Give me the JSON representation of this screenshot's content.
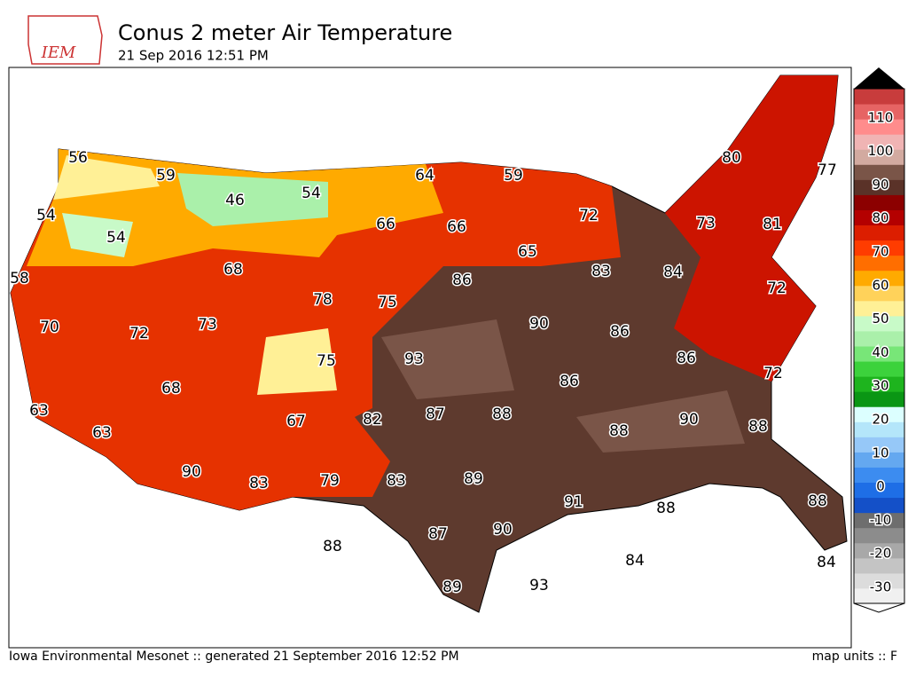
{
  "header": {
    "logo": "IEM",
    "title": "Conus 2 meter Air Temperature",
    "subtitle": "21 Sep 2016 12:51 PM"
  },
  "map": {
    "labels": [
      56,
      59,
      46,
      54,
      64,
      59,
      54,
      54,
      66,
      66,
      72,
      80,
      77,
      73,
      81,
      68,
      65,
      83,
      84,
      58,
      78,
      75,
      86,
      72,
      70,
      72,
      73,
      90,
      86,
      75,
      93,
      86,
      72,
      68,
      86,
      63,
      82,
      87,
      88,
      67,
      90,
      88,
      63,
      88,
      90,
      83,
      79,
      83,
      89,
      91,
      88,
      88,
      90,
      87,
      88,
      84,
      84,
      89,
      93
    ]
  },
  "colorbar": {
    "ticks": [
      110,
      100,
      90,
      80,
      70,
      60,
      50,
      40,
      30,
      20,
      10,
      0,
      -10,
      -20,
      -30
    ],
    "colors": [
      "#f0f0f0",
      "#dcdcdc",
      "#c4c4c4",
      "#a8a8a8",
      "#8c8c8c",
      "#6e6e6e",
      "#1450c8",
      "#1e6ee6",
      "#3c8cf0",
      "#64a8f0",
      "#96c8f8",
      "#b4e6fa",
      "#dcffff",
      "#0a9614",
      "#1eb41e",
      "#3cd23c",
      "#78e678",
      "#aaf0aa",
      "#c8fac8",
      "#fff096",
      "#ffd25a",
      "#ffaa00",
      "#ff6e00",
      "#ff3c00",
      "#dc1e00",
      "#b40000",
      "#8c0000",
      "#5a3228",
      "#7a5548",
      "#d2aaa0",
      "#f0b4b4",
      "#ff8c8c",
      "#e66464",
      "#c83c3c"
    ]
  },
  "footer": {
    "left": "Iowa Environmental Mesonet :: generated 21 September 2016 12:52 PM",
    "right": "map units :: F"
  }
}
